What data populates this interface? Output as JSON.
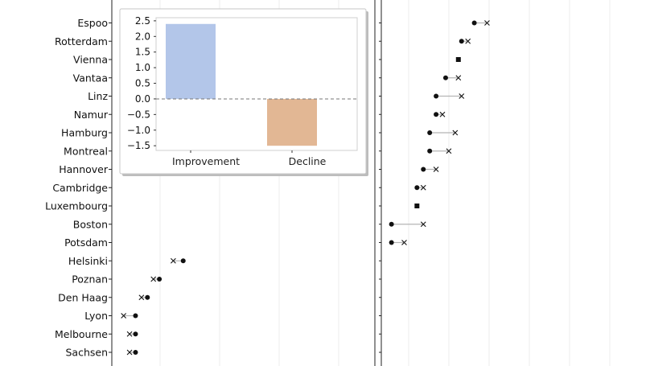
{
  "chart_data": {
    "type": "dumbbell",
    "markers": {
      "start": "dot",
      "end": "x"
    },
    "rows": [
      {
        "label": "Espoo",
        "start": 12.0,
        "end": 12.8
      },
      {
        "label": "Rotterdam",
        "start": 11.2,
        "end": 11.6
      },
      {
        "label": "Vienna",
        "start": 11.0,
        "end": 11.0
      },
      {
        "label": "Vantaa",
        "start": 10.2,
        "end": 11.0
      },
      {
        "label": "Linz",
        "start": 9.6,
        "end": 11.2
      },
      {
        "label": "Namur",
        "start": 9.6,
        "end": 10.0
      },
      {
        "label": "Hamburg",
        "start": 9.2,
        "end": 10.8
      },
      {
        "label": "Montreal",
        "start": 9.2,
        "end": 10.4
      },
      {
        "label": "Hannover",
        "start": 8.8,
        "end": 9.6
      },
      {
        "label": "Cambridge",
        "start": 8.4,
        "end": 8.8
      },
      {
        "label": "Luxembourg",
        "start": 8.4,
        "end": 8.4
      },
      {
        "label": "Boston",
        "start": 6.8,
        "end": 8.8
      },
      {
        "label": "Potsdam",
        "start": 6.8,
        "end": 7.6
      },
      {
        "label": "Helsinki",
        "start": 4.2,
        "end": 3.7
      },
      {
        "label": "Poznan",
        "start": 3.0,
        "end": 2.7
      },
      {
        "label": "Den Haag",
        "start": 2.4,
        "end": 2.1
      },
      {
        "label": "Lyon",
        "start": 1.8,
        "end": 1.2
      },
      {
        "label": "Melbourne",
        "start": 1.8,
        "end": 1.5
      },
      {
        "label": "Sachsen",
        "start": 1.8,
        "end": 1.5
      }
    ],
    "inset": {
      "type": "bar",
      "categories": [
        "Improvement",
        "Decline"
      ],
      "values": [
        2.4,
        -1.5
      ],
      "colors": [
        "#b3c6e9",
        "#e2b794"
      ],
      "ylim": [
        -1.65,
        2.6
      ],
      "yticks": [
        "2.5",
        "2.0",
        "1.5",
        "1.0",
        "0.5",
        "0.0",
        "−0.5",
        "−1.0",
        "−1.5"
      ],
      "ytick_values": [
        2.5,
        2.0,
        1.5,
        1.0,
        0.5,
        0.0,
        -0.5,
        -1.0,
        -1.5
      ],
      "reference_line": 0
    }
  }
}
